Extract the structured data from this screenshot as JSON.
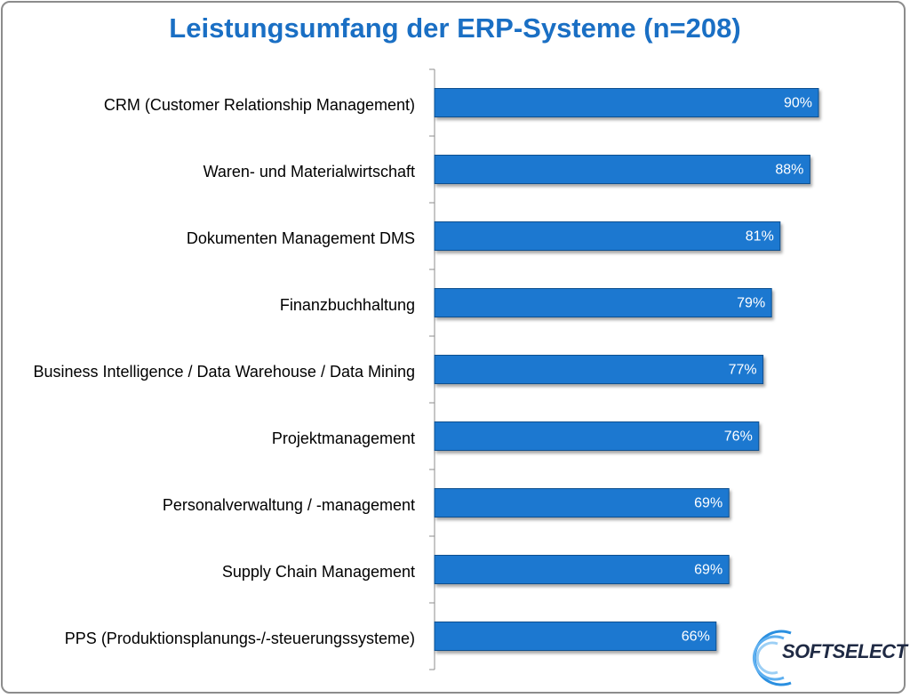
{
  "chart_data": {
    "type": "bar",
    "orientation": "horizontal",
    "title": "Leistungsumfang der ERP-Systeme (n=208)",
    "categories": [
      "CRM (Customer Relationship Management)",
      "Waren- und Materialwirtschaft",
      "Dokumenten Management DMS",
      "Finanzbuchhaltung",
      "Business Intelligence / Data Warehouse / Data Mining",
      "Projektmanagement",
      "Personalverwaltung / -management",
      "Supply Chain Management",
      "PPS (Produktionsplanungs-/-steuerungssysteme)"
    ],
    "values": [
      90,
      88,
      81,
      79,
      77,
      76,
      69,
      69,
      66
    ],
    "value_labels": [
      "90%",
      "88%",
      "81%",
      "79%",
      "77%",
      "76%",
      "69%",
      "69%",
      "66%"
    ],
    "color": "#1f78d0",
    "xlim": [
      0,
      100
    ]
  },
  "logo": "SOFTSELECT"
}
